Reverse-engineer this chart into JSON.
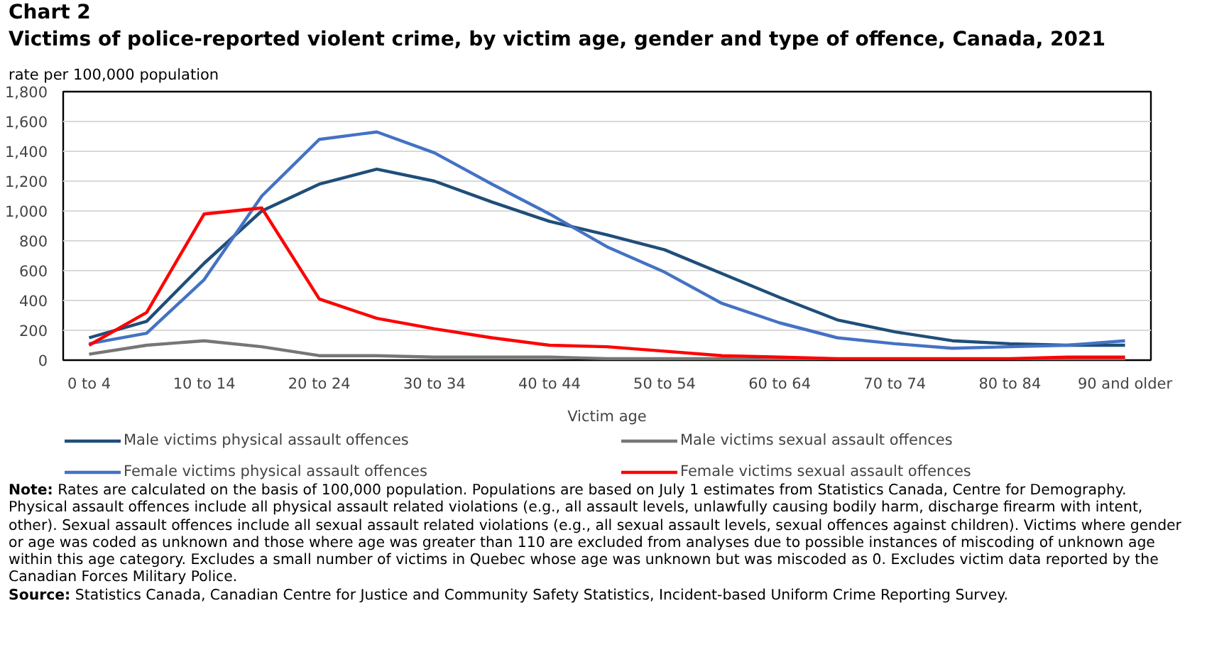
{
  "chart_data": {
    "type": "line",
    "title": "Chart 2",
    "subtitle": "Victims of police-reported violent crime, by victim age, gender and type of offence, Canada, 2021",
    "ylabel": "rate per 100,000 population",
    "xlabel": "Victim age",
    "categories": [
      "0 to 4",
      null,
      "10 to 14",
      null,
      "20 to 24",
      null,
      "30 to 34",
      null,
      "40 to 44",
      null,
      "50 to 54",
      null,
      "60 to 64",
      null,
      "70 to 74",
      null,
      "80 to 84",
      null,
      "90 and older"
    ],
    "series": [
      {
        "name": "Male victims physical assault offences",
        "color": "#1f4e79",
        "values": [
          150,
          260,
          650,
          1000,
          1180,
          1280,
          1200,
          1060,
          930,
          840,
          740,
          580,
          420,
          270,
          190,
          130,
          110,
          100,
          100
        ]
      },
      {
        "name": "Male victims sexual assault offences",
        "color": "#767676",
        "values": [
          40,
          100,
          130,
          90,
          30,
          30,
          20,
          20,
          20,
          10,
          10,
          10,
          0,
          0,
          0,
          0,
          0,
          10,
          10
        ]
      },
      {
        "name": "Female victims physical assault offences",
        "color": "#4472c4",
        "values": [
          110,
          180,
          540,
          1100,
          1480,
          1530,
          1390,
          1180,
          980,
          760,
          590,
          380,
          250,
          150,
          110,
          80,
          90,
          100,
          130
        ]
      },
      {
        "name": "Female victims sexual assault offences",
        "color": "#ff0000",
        "values": [
          100,
          320,
          980,
          1020,
          410,
          280,
          210,
          150,
          100,
          90,
          60,
          30,
          20,
          10,
          10,
          10,
          10,
          20,
          20
        ]
      }
    ],
    "ylim": [
      0,
      1800
    ],
    "yticks": [
      0,
      200,
      400,
      600,
      800,
      {
        "value": 1000,
        "label": "1,000"
      },
      {
        "value": 1200,
        "label": "1,200"
      },
      {
        "value": 1400,
        "label": "1,400"
      },
      {
        "value": 1600,
        "label": "1,600"
      },
      {
        "value": 1800,
        "label": "1,800"
      }
    ],
    "grid": "y",
    "legend": "bottom",
    "marker": "none",
    "line_style": "solid",
    "annotations": [
      "Note: Rates are calculated on the basis of 100,000 population. Populations are based on July 1 estimates from Statistics Canada, Centre for Demography. Physical assault offences include all physical assault related violations (e.g., all assault levels, unlawfully causing bodily harm, discharge firearm with intent, other). Sexual assault offences include all sexual assault related violations (e.g., all sexual assault levels, sexual offences against children). Victims where gender or age was coded as unknown and those where age was greater than 110 are excluded from analyses due to possible instances of miscoding of unknown age within this age category. Excludes a small number of victims in Quebec whose age was unknown but was miscoded as 0. Excludes victim data reported by the Canadian Forces Military Police.",
      "Source: Statistics Canada, Canadian Centre for Justice and Community Safety Statistics, Incident-based Uniform Crime Reporting Survey."
    ]
  }
}
